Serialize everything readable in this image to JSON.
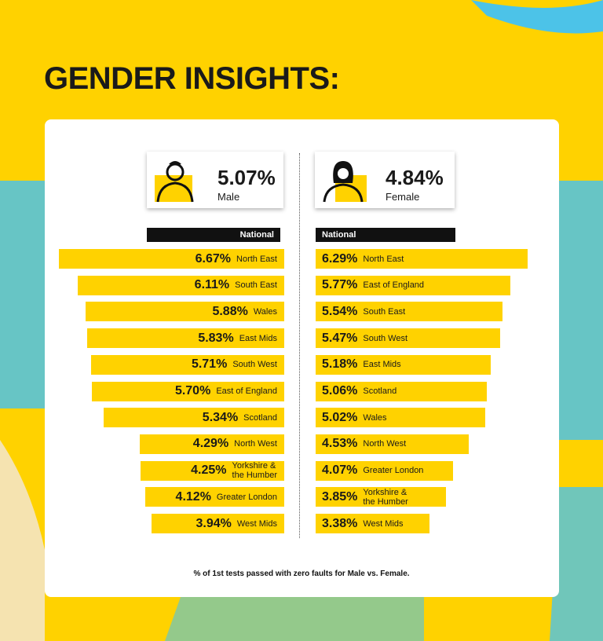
{
  "title": "GENDER INSIGHTS:",
  "footnote": "% of 1st tests passed with zero faults for Male vs. Female.",
  "chart_data": [
    {
      "type": "bar",
      "side": "left",
      "color": "#ffd200",
      "summary": {
        "name": "Male",
        "value": 5.07,
        "label": "5.07%"
      },
      "baseline_label": "National",
      "categories": [
        "North East",
        "South East",
        "Wales",
        "East Mids",
        "South West",
        "East of England",
        "Scotland",
        "North West",
        "Yorkshire &\nthe Humber",
        "Greater London",
        "West Mids"
      ],
      "values": [
        6.67,
        6.11,
        5.88,
        5.83,
        5.71,
        5.7,
        5.34,
        4.29,
        4.25,
        4.12,
        3.94
      ],
      "value_labels": [
        "6.67%",
        "6.11%",
        "5.88%",
        "5.83%",
        "5.71%",
        "5.70%",
        "5.34%",
        "4.29%",
        "4.25%",
        "4.12%",
        "3.94%"
      ]
    },
    {
      "type": "bar",
      "side": "right",
      "color": "#ffd200",
      "summary": {
        "name": "Female",
        "value": 4.84,
        "label": "4.84%"
      },
      "baseline_label": "National",
      "categories": [
        "North East",
        "East of England",
        "South East",
        "South West",
        "East Mids",
        "Scotland",
        "Wales",
        "North West",
        "Greater London",
        "Yorkshire &\nthe Humber",
        "West Mids"
      ],
      "values": [
        6.29,
        5.77,
        5.54,
        5.47,
        5.18,
        5.06,
        5.02,
        4.53,
        4.07,
        3.85,
        3.38
      ],
      "value_labels": [
        "6.29%",
        "5.77%",
        "5.54%",
        "5.47%",
        "5.18%",
        "5.06%",
        "5.02%",
        "4.53%",
        "4.07%",
        "3.85%",
        "3.38%"
      ]
    }
  ]
}
